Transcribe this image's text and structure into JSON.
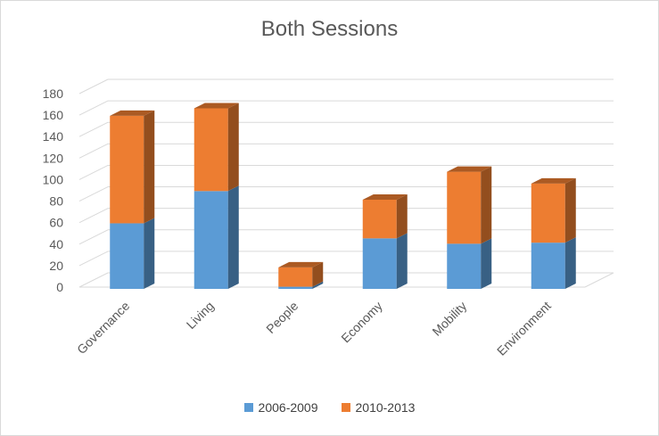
{
  "chart_data": {
    "type": "bar",
    "stacked": true,
    "style": "3d-column",
    "title": "Both Sessions",
    "xlabel": "",
    "ylabel": "",
    "ylim": [
      0,
      180
    ],
    "ytick_step": 20,
    "grid": true,
    "legend_position": "bottom",
    "categories": [
      "Governance",
      "Living",
      "People",
      "Economy",
      "Mobility",
      "Environment"
    ],
    "series": [
      {
        "name": "2006-2009",
        "color": "#5b9bd5",
        "values": [
          61,
          91,
          2,
          47,
          42,
          43
        ]
      },
      {
        "name": "2010-2013",
        "color": "#ed7d31",
        "values": [
          100,
          77,
          18,
          36,
          67,
          55
        ]
      }
    ]
  }
}
